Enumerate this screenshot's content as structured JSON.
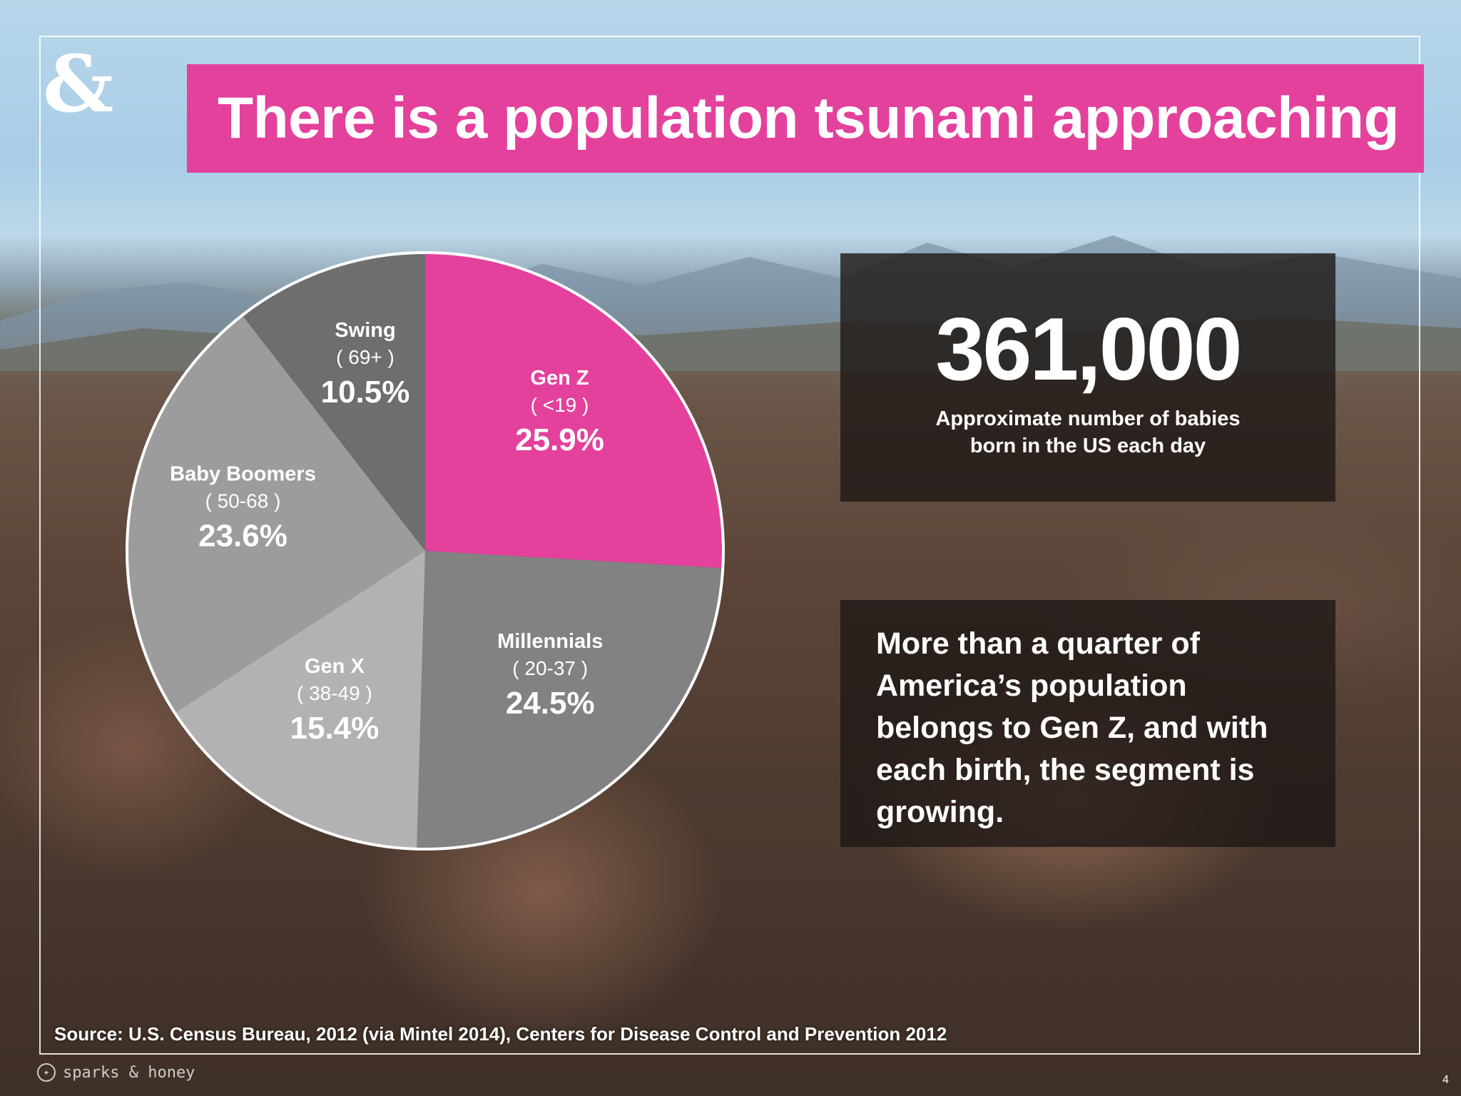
{
  "slide": {
    "logo": "&",
    "title": "There is a population tsunami approaching",
    "stat": {
      "number": "361,000",
      "caption_line1": "Approximate number of babies",
      "caption_line2": "born in the US each day"
    },
    "body_text": "More than a quarter of America’s population belongs to Gen Z, and with each birth, the segment is growing.",
    "source": "Source: U.S. Census Bureau, 2012 (via Mintel 2014), Centers for Disease Control and Prevention 2012",
    "footer_brand": "sparks & honey",
    "twitter_icon": "twitter-bird-icon",
    "page_number": "4"
  },
  "chart_data": {
    "type": "pie",
    "start_angle_deg": 0,
    "direction": "clockwise",
    "slices": [
      {
        "name": "Gen Z",
        "range": "( <19 )",
        "value": 25.9,
        "label": "25.9%",
        "color": "#e3419c"
      },
      {
        "name": "Millennials",
        "range": "( 20-37 )",
        "value": 24.5,
        "label": "24.5%",
        "color": "#838283"
      },
      {
        "name": "Gen X",
        "range": "( 38-49 )",
        "value": 15.4,
        "label": "15.4%",
        "color": "#b3b2b3"
      },
      {
        "name": "Baby Boomers",
        "range": "( 50-68 )",
        "value": 23.6,
        "label": "23.6%",
        "color": "#9d9c9d"
      },
      {
        "name": "Swing",
        "range": "( 69+ )",
        "value": 10.5,
        "label": "10.5%",
        "color": "#6f6e6f"
      }
    ]
  }
}
